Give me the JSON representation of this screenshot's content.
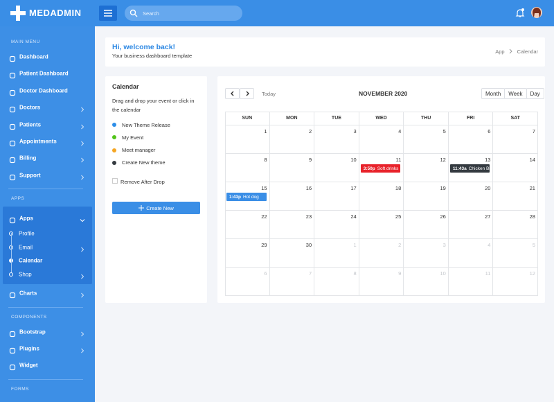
{
  "header": {
    "brand": "MEDADMIN",
    "search_placeholder": "Search"
  },
  "sidebar": {
    "sections": [
      {
        "title": "MAIN MENU",
        "items": [
          {
            "label": "Dashboard"
          },
          {
            "label": "Patient Dashboard"
          },
          {
            "label": "Doctor Dashboard"
          },
          {
            "label": "Doctors",
            "submenu": true
          },
          {
            "label": "Patients",
            "submenu": true
          },
          {
            "label": "Appointments",
            "submenu": true
          },
          {
            "label": "Billing",
            "submenu": true
          },
          {
            "label": "Support",
            "submenu": true
          }
        ]
      },
      {
        "title": "APPS",
        "items": [
          {
            "label": "Apps",
            "submenu": true,
            "open": true,
            "children": [
              {
                "label": "Profile"
              },
              {
                "label": "Email",
                "submenu": true
              },
              {
                "label": "Calendar",
                "active": true
              },
              {
                "label": "Shop",
                "submenu": true
              }
            ]
          },
          {
            "label": "Charts",
            "submenu": true
          }
        ]
      },
      {
        "title": "COMPONENTS",
        "items": [
          {
            "label": "Bootstrap",
            "submenu": true
          },
          {
            "label": "Plugins",
            "submenu": true
          },
          {
            "label": "Widget"
          }
        ]
      },
      {
        "title": "FORMS"
      }
    ]
  },
  "welcome": {
    "title": "Hi, welcome back!",
    "subtitle": "Your business dashboard template"
  },
  "breadcrumb": [
    "App",
    "Calendar"
  ],
  "events_panel": {
    "title": "Calendar",
    "instructions": "Drag and drop your event or click in the calendar",
    "events": [
      {
        "label": "New Theme Release",
        "color": "#2d8ee8"
      },
      {
        "label": "My Event",
        "color": "#52c41a"
      },
      {
        "label": "Meet manager",
        "color": "#f5a623"
      },
      {
        "label": "Create New theme",
        "color": "#343a40"
      }
    ],
    "checkbox": "Remove After Drop",
    "button": "Create New"
  },
  "calendar": {
    "title": "NOVEMBER 2020",
    "today": "Today",
    "views": [
      "Month",
      "Week",
      "Day"
    ],
    "weekdays": [
      "SUN",
      "MON",
      "TUE",
      "WED",
      "THU",
      "FRI",
      "SAT"
    ],
    "weeks": [
      [
        1,
        2,
        3,
        4,
        5,
        6,
        7
      ],
      [
        8,
        9,
        10,
        11,
        12,
        13,
        14
      ],
      [
        15,
        16,
        17,
        18,
        19,
        20,
        21
      ],
      [
        22,
        23,
        24,
        25,
        26,
        27,
        28
      ],
      [
        29,
        30,
        1,
        2,
        3,
        4,
        5
      ],
      [
        6,
        7,
        8,
        9,
        10,
        11,
        12
      ]
    ],
    "events": [
      {
        "day": 11,
        "time": "3:50p",
        "title": "Soft drinks",
        "color": "#e8232b"
      },
      {
        "day": 13,
        "time": "11:43a",
        "title": "Chicken Bi",
        "color": "#343a40"
      },
      {
        "day": 15,
        "time": "1:43p",
        "title": "Hot dog",
        "color": "#3a8ee6"
      }
    ]
  }
}
